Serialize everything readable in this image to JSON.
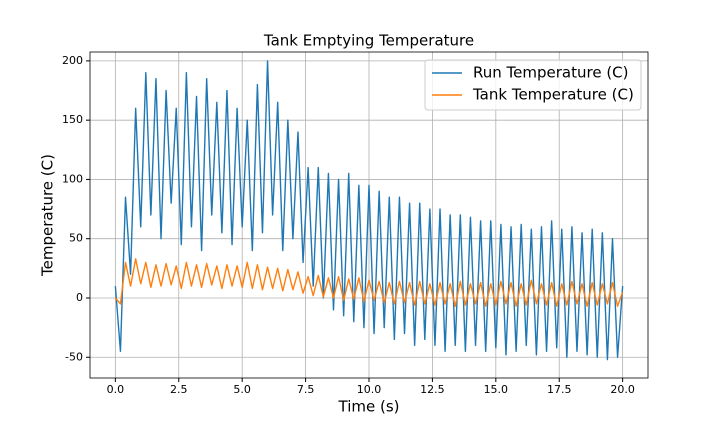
{
  "chart_data": {
    "type": "line",
    "title": "Tank Emptying Temperature",
    "xlabel": "Time (s)",
    "ylabel": "Temperature (C)",
    "x": [
      0.0,
      0.2,
      0.4,
      0.6,
      0.8,
      1.0,
      1.2,
      1.4,
      1.6,
      1.8,
      2.0,
      2.2,
      2.4,
      2.6,
      2.8,
      3.0,
      3.2,
      3.4,
      3.6,
      3.8,
      4.0,
      4.2,
      4.4,
      4.6,
      4.8,
      5.0,
      5.2,
      5.4,
      5.6,
      5.8,
      6.0,
      6.2,
      6.4,
      6.6,
      6.8,
      7.0,
      7.2,
      7.4,
      7.6,
      7.8,
      8.0,
      8.2,
      8.4,
      8.6,
      8.8,
      9.0,
      9.2,
      9.4,
      9.6,
      9.8,
      10.0,
      10.2,
      10.4,
      10.6,
      10.8,
      11.0,
      11.2,
      11.4,
      11.6,
      11.8,
      12.0,
      12.2,
      12.4,
      12.6,
      12.8,
      13.0,
      13.2,
      13.4,
      13.6,
      13.8,
      14.0,
      14.2,
      14.4,
      14.6,
      14.8,
      15.0,
      15.2,
      15.4,
      15.6,
      15.8,
      16.0,
      16.2,
      16.4,
      16.6,
      16.8,
      17.0,
      17.2,
      17.4,
      17.6,
      17.8,
      18.0,
      18.2,
      18.4,
      18.6,
      18.8,
      19.0,
      19.2,
      19.4,
      19.6,
      19.8,
      20.0
    ],
    "series": [
      {
        "name": "Run Temperature (C)",
        "color": "#1f77b4",
        "values": [
          10,
          -45,
          85,
          20,
          160,
          60,
          190,
          70,
          185,
          50,
          175,
          80,
          160,
          45,
          190,
          60,
          170,
          40,
          185,
          70,
          165,
          55,
          175,
          45,
          160,
          60,
          150,
          40,
          180,
          55,
          200,
          70,
          165,
          40,
          150,
          50,
          140,
          30,
          110,
          10,
          110,
          0,
          105,
          -10,
          100,
          -15,
          105,
          -20,
          95,
          -25,
          95,
          -30,
          90,
          -25,
          85,
          -35,
          85,
          -30,
          80,
          -40,
          80,
          -35,
          75,
          -40,
          75,
          -45,
          70,
          -40,
          70,
          -45,
          68,
          -40,
          65,
          -45,
          65,
          -42,
          62,
          -48,
          60,
          -45,
          62,
          -40,
          58,
          -48,
          60,
          -45,
          65,
          -42,
          58,
          -50,
          60,
          -45,
          55,
          -48,
          58,
          -50,
          55,
          -52,
          50,
          -50,
          10
        ]
      },
      {
        "name": "Tank Temperature (C)",
        "color": "#ff7f0e",
        "values": [
          0,
          -5,
          30,
          10,
          33,
          12,
          30,
          9,
          28,
          10,
          29,
          11,
          27,
          8,
          30,
          10,
          28,
          9,
          29,
          11,
          27,
          8,
          28,
          10,
          27,
          9,
          30,
          8,
          28,
          7,
          26,
          8,
          25,
          6,
          24,
          7,
          22,
          4,
          18,
          2,
          19,
          1,
          17,
          0,
          18,
          -2,
          16,
          -1,
          17,
          -3,
          15,
          -2,
          14,
          -4,
          13,
          -5,
          14,
          -4,
          13,
          -6,
          14,
          -5,
          12,
          -6,
          13,
          -5,
          12,
          -7,
          14,
          -6,
          12,
          -5,
          13,
          -7,
          12,
          -6,
          14,
          -5,
          13,
          -7,
          12,
          -6,
          15,
          -5,
          12,
          -6,
          13,
          -7,
          12,
          -6,
          14,
          -5,
          12,
          -7,
          13,
          -6,
          12,
          -5,
          13,
          -7,
          5
        ]
      }
    ],
    "xlim": [
      -1,
      21
    ],
    "ylim": [
      -67.5,
      207.5
    ],
    "xticks": [
      {
        "value": 0,
        "label": "0.0"
      },
      2.5,
      {
        "value": 5,
        "label": "5.0"
      },
      7.5,
      {
        "value": 10,
        "label": "10.0"
      },
      12.5,
      {
        "value": 15,
        "label": "15.0"
      },
      17.5,
      {
        "value": 20,
        "label": "20.0"
      }
    ],
    "yticks": [
      -50,
      0,
      50,
      100,
      150,
      200
    ],
    "grid": true,
    "legend": "upper right"
  }
}
